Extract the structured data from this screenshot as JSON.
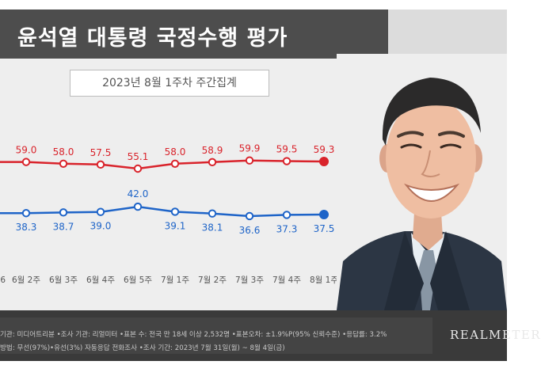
{
  "header": {
    "title": "윤석열 대통령 국정수행 평가",
    "subtitle": "2023년 8월 1주차 주간집계"
  },
  "chart_data": {
    "type": "line",
    "categories": [
      "6월 2주",
      "6월 3주",
      "6월 4주",
      "6월 5주",
      "7월 1주",
      "7월 2주",
      "7월 3주",
      "7월 4주",
      "8월 1주"
    ],
    "first_category_fragment": "6",
    "series": [
      {
        "color": "#d9232b",
        "values": [
          59.0,
          58.0,
          57.5,
          55.1,
          58.0,
          58.9,
          59.9,
          59.5,
          59.3
        ],
        "labels": [
          "59.0",
          "58.0",
          "57.5",
          "55.1",
          "58.0",
          "58.9",
          "59.9",
          "59.5",
          "59.3"
        ]
      },
      {
        "color": "#1e64c8",
        "values": [
          38.3,
          38.7,
          39.0,
          42.0,
          39.1,
          38.1,
          36.6,
          37.3,
          37.5
        ],
        "labels": [
          "38.3",
          "38.7",
          "39.0",
          "42.0",
          "39.1",
          "38.1",
          "36.6",
          "37.3",
          "37.5"
        ]
      }
    ],
    "grid": false,
    "legend": "none"
  },
  "footer": {
    "line1": "기관: 미디어트리뷴 •조사 기관: 리얼미터 •표본 수: 전국 만 18세 이상 2,532명 •표본오차: ±1.9%P(95% 신뢰수준) •응답률: 3.2%",
    "line2": "방법: 무선(97%)•유선(3%) 자동응답 전화조사 •조사 기간: 2023년 7월 31일(월) ~ 8월 4일(금)",
    "brand": "REALMETER"
  },
  "photo": {
    "icon": "president-portrait-photo"
  }
}
